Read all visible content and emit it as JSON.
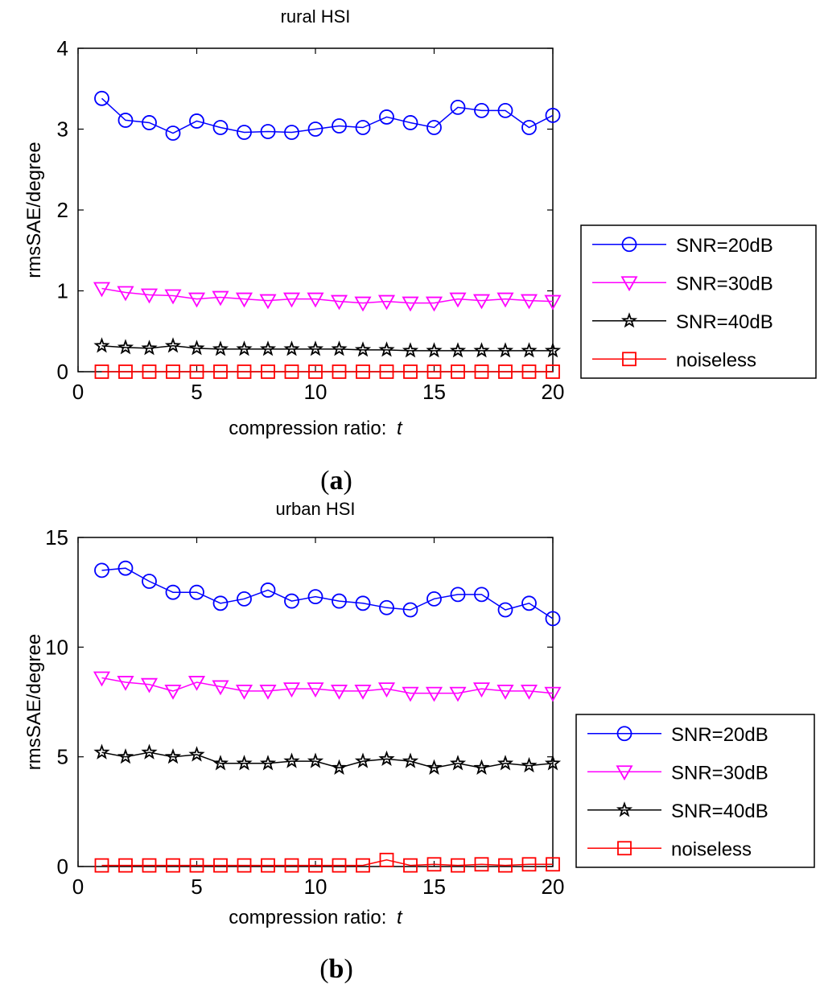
{
  "chart_data": [
    {
      "type": "line",
      "title": "rural HSI",
      "xlabel": "compression ratio: ",
      "xlabel_var": "t",
      "ylabel": "rmsSAE/degree",
      "caption_letter": "a",
      "xlim": [
        0,
        20
      ],
      "ylim": [
        0,
        4
      ],
      "xticks": [
        "0",
        "5",
        "10",
        "15",
        "20"
      ],
      "yticks": [
        "0",
        "1",
        "2",
        "3",
        "4"
      ],
      "x": [
        1,
        2,
        3,
        4,
        5,
        6,
        7,
        8,
        9,
        10,
        11,
        12,
        13,
        14,
        15,
        16,
        17,
        18,
        19,
        20
      ],
      "legend_position": "outside-right",
      "series": [
        {
          "name": "SNR=20dB",
          "color": "#0000ff",
          "marker": "circle",
          "values": [
            3.38,
            3.11,
            3.08,
            2.95,
            3.1,
            3.02,
            2.96,
            2.97,
            2.96,
            3.0,
            3.04,
            3.02,
            3.15,
            3.08,
            3.02,
            3.27,
            3.23,
            3.23,
            3.02,
            3.17
          ]
        },
        {
          "name": "SNR=30dB",
          "color": "#ff00ff",
          "marker": "triangle-down",
          "values": [
            1.03,
            0.98,
            0.95,
            0.94,
            0.9,
            0.92,
            0.9,
            0.88,
            0.9,
            0.9,
            0.87,
            0.85,
            0.87,
            0.85,
            0.85,
            0.9,
            0.88,
            0.9,
            0.88,
            0.87
          ]
        },
        {
          "name": "SNR=40dB",
          "color": "#000000",
          "marker": "pentagram",
          "values": [
            0.32,
            0.3,
            0.29,
            0.32,
            0.29,
            0.28,
            0.28,
            0.28,
            0.28,
            0.28,
            0.28,
            0.27,
            0.27,
            0.26,
            0.26,
            0.26,
            0.26,
            0.26,
            0.26,
            0.26
          ]
        },
        {
          "name": "noiseless",
          "color": "#ff0000",
          "marker": "square",
          "values": [
            0,
            0,
            0,
            0,
            0,
            0,
            0,
            0,
            0,
            0,
            0,
            0,
            0,
            0,
            0,
            0,
            0,
            0,
            0,
            0
          ]
        }
      ]
    },
    {
      "type": "line",
      "title": "urban HSI",
      "xlabel": "compression ratio: ",
      "xlabel_var": "t",
      "ylabel": "rmsSAE/degree",
      "caption_letter": "b",
      "xlim": [
        0,
        20
      ],
      "ylim": [
        0,
        15
      ],
      "xticks": [
        "0",
        "5",
        "10",
        "15",
        "20"
      ],
      "yticks": [
        "0",
        "5",
        "10",
        "15"
      ],
      "x": [
        1,
        2,
        3,
        4,
        5,
        6,
        7,
        8,
        9,
        10,
        11,
        12,
        13,
        14,
        15,
        16,
        17,
        18,
        19,
        20
      ],
      "legend_position": "outside-right",
      "series": [
        {
          "name": "SNR=20dB",
          "color": "#0000ff",
          "marker": "circle",
          "values": [
            13.5,
            13.6,
            13.0,
            12.5,
            12.5,
            12.0,
            12.2,
            12.6,
            12.1,
            12.3,
            12.1,
            12.0,
            11.8,
            11.7,
            12.2,
            12.4,
            12.4,
            11.7,
            12.0,
            11.3
          ]
        },
        {
          "name": "SNR=30dB",
          "color": "#ff00ff",
          "marker": "triangle-down",
          "values": [
            8.6,
            8.4,
            8.3,
            8.0,
            8.4,
            8.2,
            8.0,
            8.0,
            8.1,
            8.1,
            8.0,
            8.0,
            8.1,
            7.9,
            7.9,
            7.9,
            8.1,
            8.0,
            8.0,
            7.9
          ]
        },
        {
          "name": "SNR=40dB",
          "color": "#000000",
          "marker": "pentagram",
          "values": [
            5.2,
            5.0,
            5.2,
            5.0,
            5.1,
            4.7,
            4.7,
            4.7,
            4.8,
            4.8,
            4.5,
            4.8,
            4.9,
            4.8,
            4.5,
            4.7,
            4.5,
            4.7,
            4.6,
            4.7
          ]
        },
        {
          "name": "noiseless",
          "color": "#ff0000",
          "marker": "square",
          "values": [
            0.05,
            0.05,
            0.05,
            0.05,
            0.05,
            0.05,
            0.05,
            0.05,
            0.05,
            0.05,
            0.05,
            0.05,
            0.3,
            0.05,
            0.1,
            0.05,
            0.1,
            0.05,
            0.1,
            0.1
          ]
        }
      ]
    }
  ]
}
